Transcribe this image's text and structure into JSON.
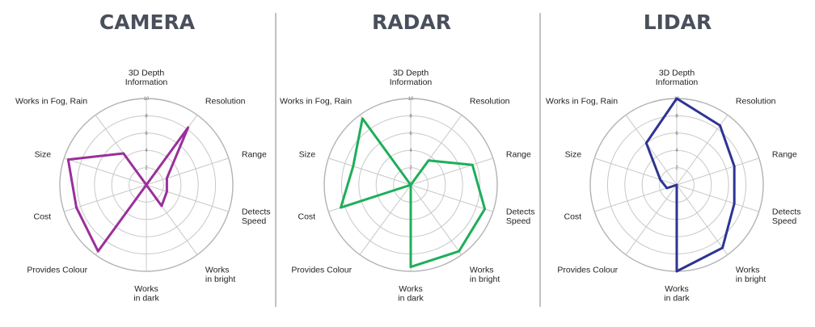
{
  "chart_data": [
    {
      "type": "radar",
      "title": "CAMERA",
      "color": "#9b2f9b",
      "axes": [
        "3D Depth\nInformation",
        "Resolution",
        "Range",
        "Detects\nSpeed",
        "Works\nin bright",
        "Works\nin dark",
        "Provides Colour",
        "Cost",
        "Size",
        "Works in Fog, Rain"
      ],
      "ticks": [
        2,
        4,
        6,
        8,
        10
      ],
      "rlim": [
        0,
        10
      ],
      "values": [
        0,
        8.2,
        2.5,
        2.5,
        3.0,
        0,
        9.5,
        8.5,
        9.5,
        4.5
      ]
    },
    {
      "type": "radar",
      "title": "RADAR",
      "color": "#1eae5a",
      "axes": [
        "3D Depth\nInformation",
        "Resolution",
        "Range",
        "Detects\nSpeed",
        "Works\nin bright",
        "Works\nin dark",
        "Provides Colour",
        "Cost",
        "Size",
        "Works in Fog, Rain"
      ],
      "ticks": [
        2,
        4,
        6,
        8,
        10
      ],
      "rlim": [
        0,
        10
      ],
      "values": [
        0,
        3.5,
        7.5,
        9.0,
        9.5,
        9.5,
        0,
        8.5,
        7.0,
        9.5
      ]
    },
    {
      "type": "radar",
      "title": "LIDAR",
      "color": "#2d3494",
      "axes": [
        "3D Depth\nInformation",
        "Resolution",
        "Range",
        "Detects\nSpeed",
        "Works\nin bright",
        "Works\nin dark",
        "Provides Colour",
        "Cost",
        "Size",
        "Works in Fog, Rain"
      ],
      "ticks": [
        2,
        4,
        6,
        8,
        10
      ],
      "rlim": [
        0,
        10
      ],
      "values": [
        10,
        8.5,
        7.0,
        7.0,
        9.0,
        10,
        0,
        1.2,
        2.0,
        6.0
      ]
    }
  ]
}
